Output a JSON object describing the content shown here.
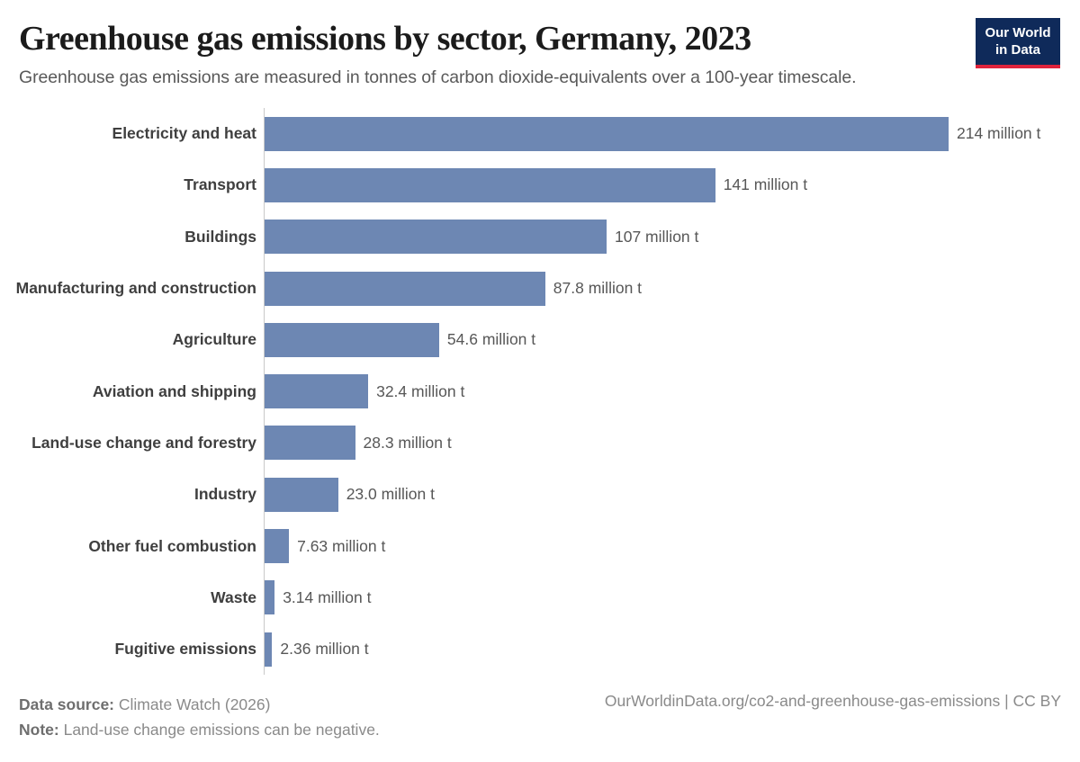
{
  "header": {
    "title": "Greenhouse gas emissions by sector, Germany, 2023",
    "subtitle": "Greenhouse gas emissions are measured in tonnes of carbon dioxide-equivalents over a 100-year timescale.",
    "logo": {
      "line1": "Our World",
      "line2": "in Data",
      "bg_color": "#0f2a5a",
      "stripe_color": "#e0233c"
    }
  },
  "chart_data": {
    "type": "bar",
    "orientation": "horizontal",
    "title": "Greenhouse gas emissions by sector, Germany, 2023",
    "unit": "million t",
    "categories": [
      "Electricity and heat",
      "Transport",
      "Buildings",
      "Manufacturing and construction",
      "Agriculture",
      "Aviation and shipping",
      "Land-use change and forestry",
      "Industry",
      "Other fuel combustion",
      "Waste",
      "Fugitive emissions"
    ],
    "values": [
      214,
      141,
      107,
      87.8,
      54.6,
      32.4,
      28.3,
      23.0,
      7.63,
      3.14,
      2.36
    ],
    "value_labels": [
      "214 million t",
      "141 million t",
      "107 million t",
      "87.8 million t",
      "54.6 million t",
      "32.4 million t",
      "28.3 million t",
      "23.0 million t",
      "7.63 million t",
      "3.14 million t",
      "2.36 million t"
    ],
    "bar_color": "#6d87b3",
    "xlim": [
      0,
      214
    ],
    "grid": false,
    "legend": "none",
    "value_labels_position": "end-of-bar"
  },
  "footer": {
    "datasource_label": "Data source:",
    "datasource_value": " Climate Watch (2026)",
    "note_label": "Note:",
    "note_value": " Land-use change emissions can be negative.",
    "link": "OurWorldinData.org/co2-and-greenhouse-gas-emissions | CC BY"
  }
}
